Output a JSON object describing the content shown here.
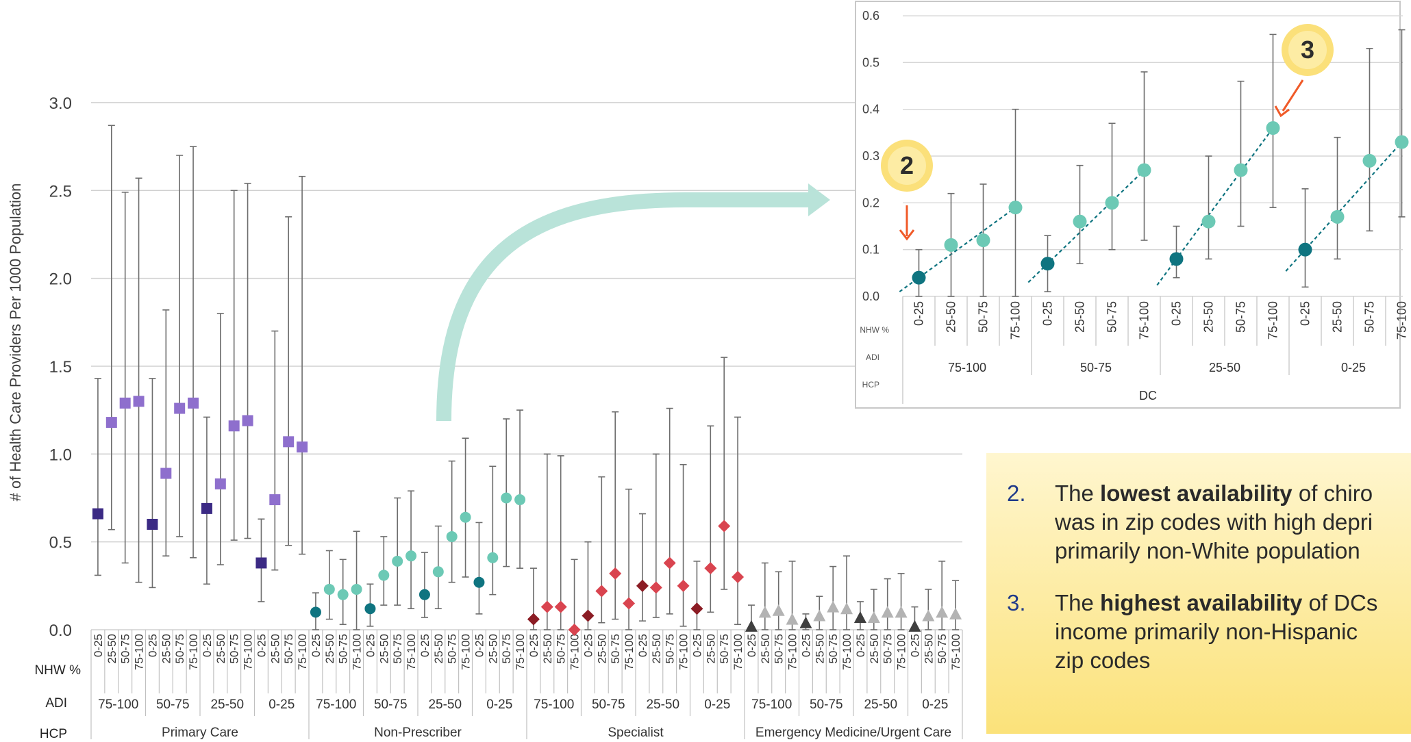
{
  "main_chart": {
    "ylabel": "# of Health Care Providers Per 1000 Population",
    "yticks": [
      "0.0",
      "0.5",
      "1.0",
      "1.5",
      "2.0",
      "2.5",
      "3.0"
    ],
    "row_labels": {
      "nhw": "NHW %",
      "adi": "ADI",
      "hcp": "HCP"
    },
    "nhw_values": [
      "0-25",
      "25-50",
      "50-75",
      "75-100"
    ],
    "adi_values": [
      "75-100",
      "50-75",
      "25-50",
      "0-25"
    ],
    "hcp_groups": [
      {
        "name": "Primary Care",
        "marker": "square",
        "colors": [
          "#3b2a84",
          "#8e6fcd"
        ]
      },
      {
        "name": "Non-Prescriber",
        "marker": "circle",
        "colors": [
          "#0f7480",
          "#6cc9b5"
        ]
      },
      {
        "name": "Specialist",
        "marker": "diamond",
        "colors": [
          "#8b1c24",
          "#d9444f"
        ]
      },
      {
        "name": "Emergency Medicine/Urgent Care",
        "marker": "triangle",
        "colors": [
          "#3f3f3f",
          "#b3b3b3"
        ]
      }
    ]
  },
  "chart_data": [
    {
      "type": "scatter",
      "title": "",
      "ylabel": "# of Health Care Providers Per 1000 Population",
      "ylim": [
        0,
        3.0
      ],
      "grid": true,
      "series": [
        {
          "name": "Primary Care",
          "values": [
            0.66,
            1.18,
            1.29,
            1.3,
            0.6,
            0.89,
            1.26,
            1.29,
            0.69,
            0.83,
            1.16,
            1.19,
            0.38,
            0.74,
            1.07,
            1.04
          ],
          "lower": [
            0.31,
            0.57,
            0.38,
            0.27,
            0.24,
            0.42,
            0.53,
            0.41,
            0.26,
            0.37,
            0.51,
            0.52,
            0.16,
            0.34,
            0.48,
            0.43
          ],
          "upper": [
            1.43,
            2.87,
            2.49,
            2.57,
            1.43,
            1.82,
            2.7,
            2.75,
            1.21,
            1.8,
            2.5,
            2.54,
            0.63,
            1.7,
            2.35,
            2.58
          ]
        },
        {
          "name": "Non-Prescriber",
          "values": [
            0.1,
            0.23,
            0.2,
            0.23,
            0.12,
            0.31,
            0.39,
            0.42,
            0.2,
            0.33,
            0.53,
            0.64,
            0.27,
            0.41,
            0.75,
            0.74
          ],
          "lower": [
            0.0,
            0.06,
            0.03,
            0.0,
            0.02,
            0.14,
            0.14,
            0.12,
            0.07,
            0.12,
            0.27,
            0.3,
            0.09,
            0.2,
            0.36,
            0.35
          ],
          "upper": [
            0.21,
            0.45,
            0.4,
            0.56,
            0.26,
            0.53,
            0.75,
            0.79,
            0.44,
            0.59,
            0.96,
            1.09,
            0.61,
            0.93,
            1.2,
            1.25
          ]
        },
        {
          "name": "Specialist",
          "values": [
            0.06,
            0.13,
            0.13,
            0.0,
            0.08,
            0.22,
            0.32,
            0.15,
            0.25,
            0.24,
            0.38,
            0.25,
            0.12,
            0.35,
            0.59,
            0.3
          ],
          "lower": [
            0.0,
            0.0,
            0.0,
            0.0,
            0.0,
            0.04,
            0.06,
            0.0,
            0.05,
            0.07,
            0.09,
            0.02,
            0.0,
            0.1,
            0.23,
            0.03
          ],
          "upper": [
            0.35,
            1.0,
            0.99,
            0.4,
            0.5,
            0.87,
            1.24,
            0.8,
            0.66,
            1.0,
            1.26,
            0.94,
            0.39,
            1.16,
            1.55,
            1.21
          ]
        },
        {
          "name": "Emergency Medicine/Urgent Care",
          "values": [
            0.02,
            0.1,
            0.11,
            0.06,
            0.04,
            0.08,
            0.13,
            0.12,
            0.07,
            0.07,
            0.1,
            0.1,
            0.02,
            0.08,
            0.1,
            0.09
          ],
          "lower": [
            0.0,
            0.0,
            0.0,
            0.0,
            0.0,
            0.0,
            0.0,
            0.0,
            0.0,
            0.0,
            0.0,
            0.0,
            0.0,
            0.0,
            0.0,
            0.0
          ],
          "upper": [
            0.14,
            0.38,
            0.33,
            0.39,
            0.09,
            0.19,
            0.36,
            0.42,
            0.16,
            0.23,
            0.29,
            0.32,
            0.13,
            0.23,
            0.39,
            0.28
          ]
        }
      ]
    },
    {
      "type": "scatter",
      "title": "",
      "ylim": [
        0,
        0.6
      ],
      "yticks": [
        "0.0",
        "0.1",
        "0.2",
        "0.3",
        "0.4",
        "0.5",
        "0.6"
      ],
      "grid": true,
      "row_labels": {
        "nhw": "NHW %",
        "adi": "ADI",
        "hcp": "HCP"
      },
      "nhw_values": [
        "0-25",
        "25-50",
        "50-75",
        "75-100"
      ],
      "adi_values": [
        "75-100",
        "50-75",
        "25-50",
        "0-25"
      ],
      "hcp": "DC",
      "colors": [
        "#0f7480",
        "#6cc9b5"
      ],
      "series": [
        {
          "name": "DC",
          "values": [
            0.04,
            0.11,
            0.12,
            0.19,
            0.07,
            0.16,
            0.2,
            0.27,
            0.08,
            0.16,
            0.27,
            0.36,
            0.1,
            0.17,
            0.29,
            0.33
          ],
          "lower": [
            0.0,
            0.0,
            0.0,
            0.0,
            0.01,
            0.07,
            0.1,
            0.12,
            0.04,
            0.08,
            0.15,
            0.19,
            0.02,
            0.08,
            0.14,
            0.17
          ],
          "upper": [
            0.1,
            0.22,
            0.24,
            0.4,
            0.13,
            0.28,
            0.37,
            0.48,
            0.15,
            0.3,
            0.46,
            0.56,
            0.23,
            0.34,
            0.53,
            0.57
          ]
        }
      ],
      "annotations": [
        "2",
        "3"
      ]
    }
  ],
  "callouts": [
    {
      "num": "2.",
      "lines": [
        [
          {
            "t": "The "
          },
          {
            "t": "lowest availability",
            "b": true
          },
          {
            "t": " of chiro"
          }
        ],
        [
          {
            "t": "was in zip codes with high depri"
          }
        ],
        [
          {
            "t": "primarily non-White population"
          }
        ]
      ]
    },
    {
      "num": "3.",
      "lines": [
        [
          {
            "t": "The "
          },
          {
            "t": "highest availability",
            "b": true
          },
          {
            "t": " of DCs"
          }
        ],
        [
          {
            "t": "income primarily non-Hispanic "
          }
        ],
        [
          {
            "t": "zip codes"
          }
        ]
      ]
    }
  ]
}
